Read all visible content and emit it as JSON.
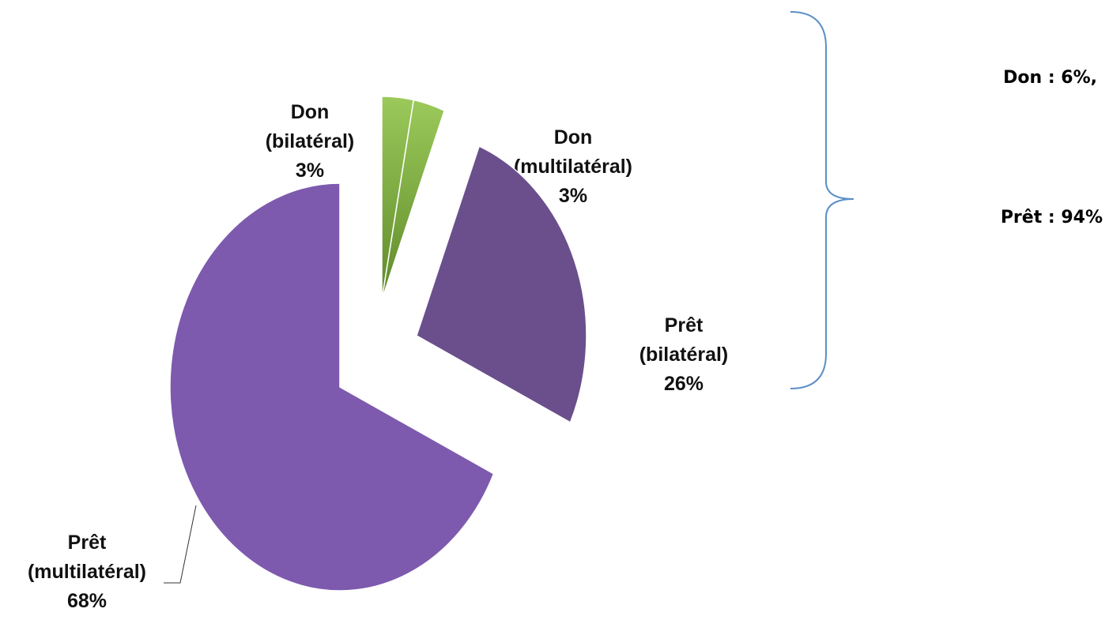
{
  "chart_data": {
    "type": "pie",
    "categories": [
      "Don (bilatéral)",
      "Don (multilatéral)",
      "Prêt (bilatéral)",
      "Prêt (multilatéral)"
    ],
    "values": [
      3,
      3,
      26,
      68
    ],
    "value_labels": [
      "3%",
      "3%",
      "26%",
      "68%"
    ],
    "colors": [
      "#7aa63c",
      "#7aa63c",
      "#6a4f8c",
      "#7d5aae"
    ],
    "annotations": [
      "Don : 6%,",
      "Prêt : 94%"
    ]
  }
}
